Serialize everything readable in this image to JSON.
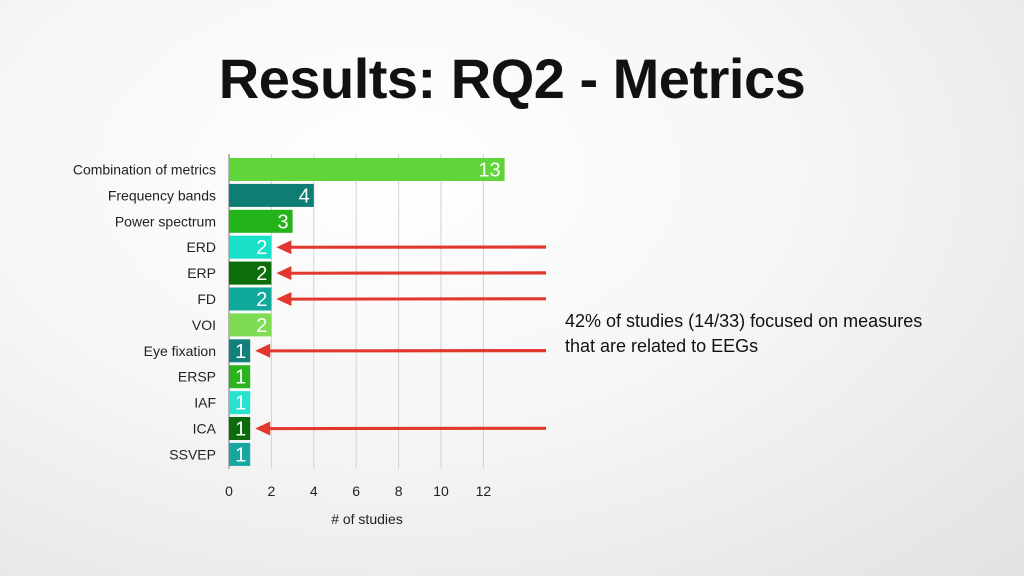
{
  "slide": {
    "title": "Results: RQ2 - Metrics",
    "annotation": "42% of studies (14/33) focused on measures that are related to EEGs"
  },
  "chart_data": {
    "type": "bar",
    "orientation": "horizontal",
    "title": "",
    "xlabel": "# of studies",
    "ylabel": "",
    "xlim": [
      0,
      13
    ],
    "xticks": [
      0,
      2,
      4,
      6,
      8,
      10,
      12
    ],
    "grid": true,
    "categories": [
      "Combination of metrics",
      "Frequency bands",
      "Power spectrum",
      "ERD",
      "ERP",
      "FD",
      "VOI",
      "Eye fixation",
      "ERSP",
      "IAF",
      "ICA",
      "SSVEP"
    ],
    "values": [
      13,
      4,
      3,
      2,
      2,
      2,
      2,
      1,
      1,
      1,
      1,
      1
    ],
    "colors": [
      "#5fd53a",
      "#0e7d74",
      "#23b41a",
      "#19e0c8",
      "#0b6e0b",
      "#10a99b",
      "#7ddc52",
      "#137f7b",
      "#2bb31f",
      "#27e2cf",
      "#0c6b0c",
      "#17a6a0"
    ],
    "arrow_color": "#e2372c",
    "highlighted": [
      "ERD",
      "ERP",
      "FD",
      "Eye fixation",
      "ICA"
    ]
  }
}
